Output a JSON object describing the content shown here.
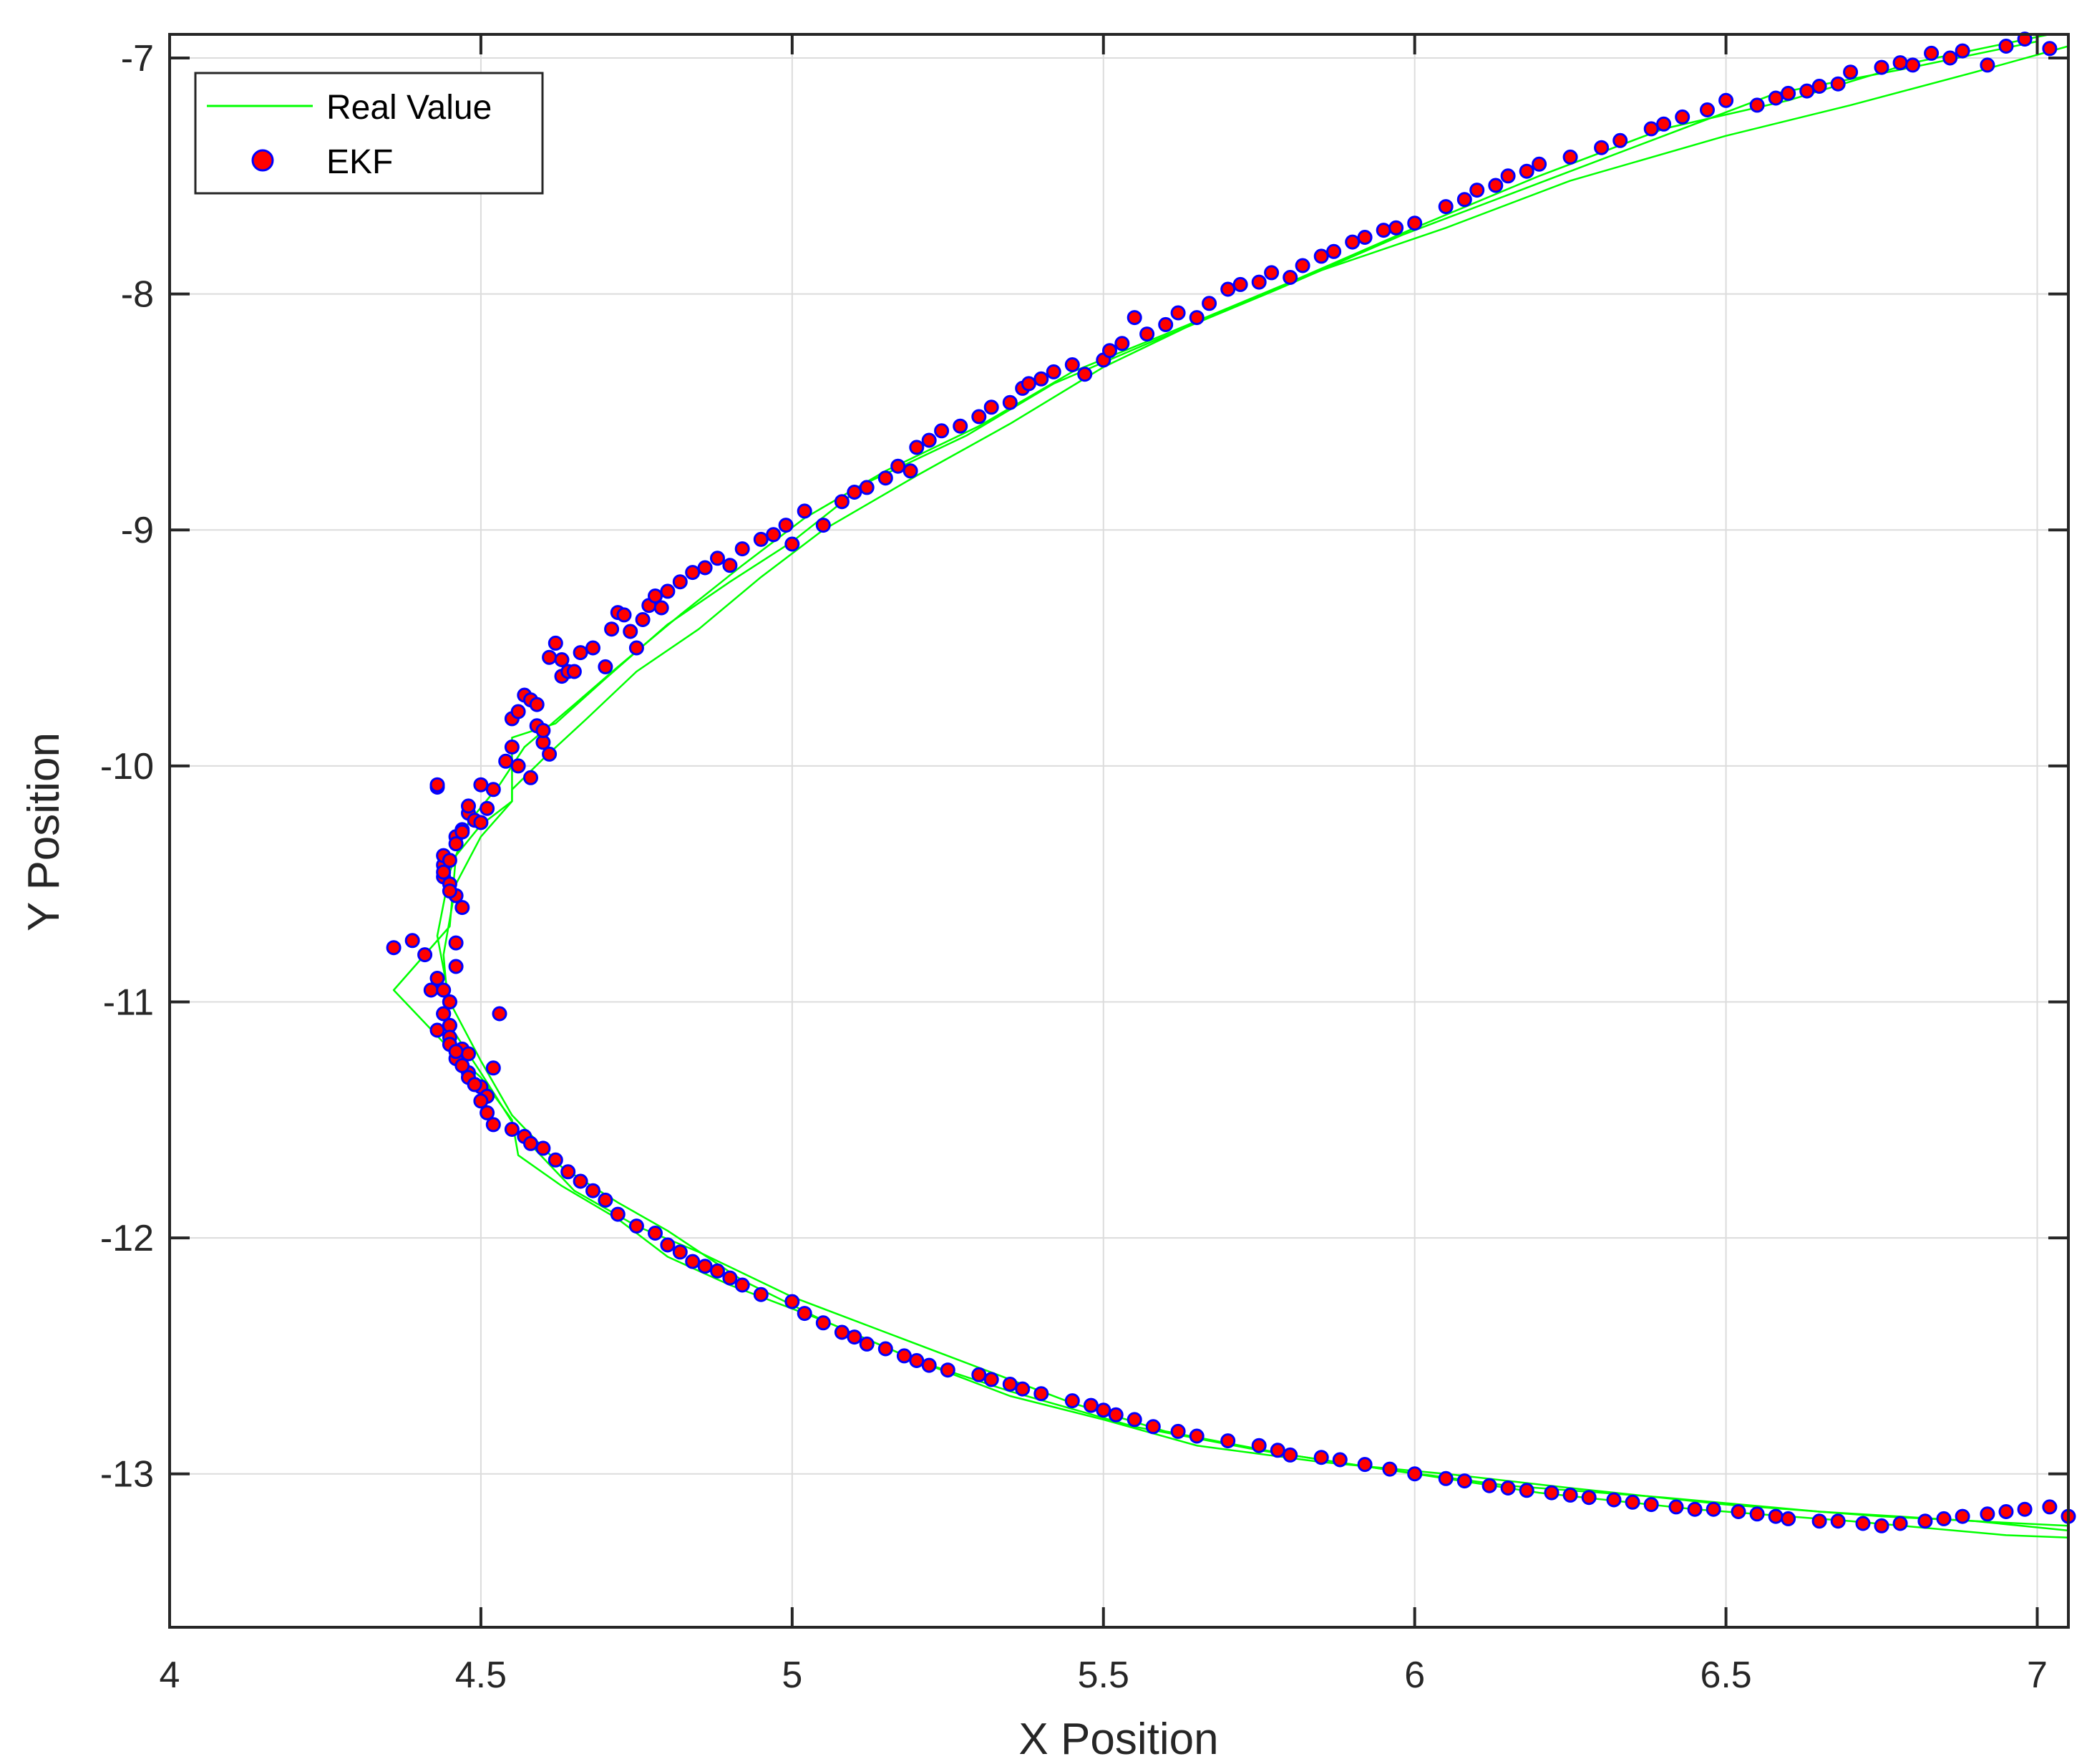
{
  "chart_data": {
    "type": "scatter",
    "title": "",
    "xlabel": "X Position",
    "ylabel": "Y Position",
    "xlim": [
      4,
      7.05
    ],
    "ylim": [
      -13.65,
      -6.9
    ],
    "xticks": [
      4,
      4.5,
      5,
      5.5,
      6,
      6.5,
      7
    ],
    "yticks": [
      -7,
      -8,
      -9,
      -10,
      -11,
      -12,
      -13
    ],
    "xtick_labels": [
      "4",
      "4.5",
      "5",
      "5.5",
      "6",
      "6.5",
      "7"
    ],
    "ytick_labels": [
      "-7",
      "-8",
      "-9",
      "-10",
      "-11",
      "-12",
      "-13"
    ],
    "grid": true,
    "legend_position": "top-left",
    "colors": {
      "real_line": "#00ff00",
      "ekf_fill": "#ff0000",
      "ekf_edge": "#0000ff",
      "grid": "#dcdcdc",
      "axes": "#262626"
    },
    "series": [
      {
        "name": "Real Value",
        "kind": "line",
        "x": [
          7.05,
          6.9,
          6.7,
          6.5,
          6.25,
          6.05,
          5.85,
          5.65,
          5.5,
          5.35,
          5.2,
          5.05,
          4.95,
          4.85,
          4.75,
          4.67,
          4.6,
          4.55,
          4.55,
          4.5,
          4.46,
          4.45,
          4.36,
          4.45,
          4.5,
          4.55,
          4.56,
          4.63,
          4.72,
          4.8,
          4.9,
          5.05,
          5.2,
          5.35,
          5.5,
          5.65,
          5.85,
          6.05,
          6.25,
          6.5,
          6.75,
          7.05
        ],
        "y": [
          -6.95,
          -7.06,
          -7.2,
          -7.33,
          -7.52,
          -7.72,
          -7.9,
          -8.12,
          -8.31,
          -8.55,
          -8.77,
          -9.0,
          -9.2,
          -9.42,
          -9.6,
          -9.8,
          -9.97,
          -10.1,
          -10.15,
          -10.25,
          -10.38,
          -10.68,
          -10.95,
          -11.2,
          -11.32,
          -11.5,
          -11.65,
          -11.78,
          -11.92,
          -12.08,
          -12.2,
          -12.35,
          -12.52,
          -12.67,
          -12.77,
          -12.88,
          -12.95,
          -13.0,
          -13.06,
          -13.13,
          -13.18,
          -13.22
        ]
      },
      {
        "name": "Real Value",
        "kind": "line",
        "x": [
          7.02,
          6.8,
          6.6,
          6.4,
          6.2,
          6.0,
          5.8,
          5.6,
          5.45,
          5.3,
          5.15,
          5.02,
          4.92,
          4.82,
          4.72,
          4.65,
          4.57,
          4.53,
          4.48,
          4.45,
          4.43,
          4.45,
          4.5,
          4.55,
          4.63,
          4.72,
          4.8,
          4.92,
          5.05,
          5.2,
          5.35,
          5.55,
          5.75,
          5.95,
          6.15,
          6.4,
          6.65,
          6.9,
          7.05
        ],
        "y": [
          -6.9,
          -7.02,
          -7.18,
          -7.3,
          -7.5,
          -7.72,
          -7.95,
          -8.17,
          -8.33,
          -8.56,
          -8.75,
          -8.95,
          -9.15,
          -9.36,
          -9.58,
          -9.74,
          -9.92,
          -10.08,
          -10.24,
          -10.45,
          -10.72,
          -11.0,
          -11.25,
          -11.48,
          -11.7,
          -11.85,
          -11.97,
          -12.18,
          -12.35,
          -12.52,
          -12.65,
          -12.8,
          -12.9,
          -12.98,
          -13.05,
          -13.1,
          -13.16,
          -13.2,
          -13.24
        ]
      },
      {
        "name": "Real Value",
        "kind": "line",
        "x": [
          7.0,
          6.78,
          6.58,
          6.38,
          6.18,
          5.98,
          5.78,
          5.58,
          5.42,
          5.28,
          5.12,
          5.0,
          4.9,
          4.8,
          4.7,
          4.62,
          4.55,
          4.55,
          4.5,
          4.46,
          4.44,
          4.45,
          4.5,
          4.56,
          4.65,
          4.75,
          4.85,
          5.0,
          5.15,
          5.3,
          5.45,
          5.6,
          5.8,
          6.0,
          6.2,
          6.45,
          6.7,
          6.95,
          7.05
        ],
        "y": [
          -6.93,
          -7.05,
          -7.15,
          -7.35,
          -7.55,
          -7.75,
          -7.98,
          -8.2,
          -8.38,
          -8.6,
          -8.8,
          -9.05,
          -9.22,
          -9.4,
          -9.63,
          -9.82,
          -9.88,
          -10.15,
          -10.3,
          -10.5,
          -10.8,
          -11.1,
          -11.3,
          -11.55,
          -11.8,
          -11.95,
          -12.06,
          -12.25,
          -12.4,
          -12.55,
          -12.7,
          -12.82,
          -12.92,
          -13.0,
          -13.08,
          -13.15,
          -13.2,
          -13.26,
          -13.27
        ]
      },
      {
        "name": "EKF",
        "kind": "scatter",
        "x": [
          4.36,
          4.39,
          4.41,
          4.42,
          4.43,
          4.44,
          4.44,
          4.45,
          4.46,
          4.47,
          4.43,
          4.44,
          4.45,
          4.45,
          4.46,
          4.46,
          4.44,
          4.45,
          4.44,
          4.45,
          4.46,
          4.47,
          4.44,
          4.45,
          4.45,
          4.45,
          4.44,
          4.43,
          4.47,
          4.48,
          4.46,
          4.48,
          4.49,
          4.5,
          4.51,
          4.52,
          4.53,
          4.43,
          4.48,
          4.49,
          4.47,
          4.46,
          4.48,
          4.5,
          4.51,
          4.52,
          4.5,
          4.54,
          4.55,
          4.55,
          4.56,
          4.57,
          4.58,
          4.59,
          4.6,
          4.61,
          4.56,
          4.58,
          4.59,
          4.6,
          4.61,
          4.62,
          4.63,
          4.63,
          4.64,
          4.65,
          4.66,
          4.68,
          4.7,
          4.71,
          4.72,
          4.73,
          4.74,
          4.75,
          4.76,
          4.77,
          4.78,
          4.79,
          4.8,
          4.82,
          4.84,
          4.86,
          4.88,
          4.9,
          4.92,
          4.95,
          4.97,
          4.99,
          5.0,
          5.02,
          5.05,
          5.08,
          5.1,
          5.12,
          5.15,
          5.17,
          5.19,
          5.2,
          5.22,
          5.24,
          5.27,
          5.3,
          5.32,
          5.35,
          5.37,
          5.38,
          5.4,
          5.42,
          5.45,
          5.47,
          5.5,
          5.51,
          5.53,
          5.55,
          5.57,
          5.6,
          5.62,
          5.65,
          5.67,
          5.7,
          5.72,
          5.75,
          5.77,
          5.8,
          5.82,
          5.85,
          5.87,
          5.9,
          5.92,
          5.95,
          5.97,
          6.0,
          6.05,
          6.08,
          6.1,
          6.13,
          6.15,
          6.18,
          6.2,
          6.25,
          6.3,
          6.33,
          6.38,
          6.4,
          6.43,
          6.47,
          6.5,
          6.55,
          6.58,
          6.6,
          6.63,
          6.65,
          6.68,
          6.7,
          6.75,
          6.78,
          6.8,
          6.83,
          6.86,
          6.88,
          6.92,
          6.95,
          6.98,
          7.02,
          4.45,
          4.46,
          4.47,
          4.48,
          4.49,
          4.5,
          4.51,
          4.52,
          4.55,
          4.57,
          4.58,
          4.6,
          4.62,
          4.64,
          4.66,
          4.68,
          4.7,
          4.72,
          4.75,
          4.78,
          4.8,
          4.82,
          4.84,
          4.86,
          4.88,
          4.9,
          4.92,
          4.95,
          5.0,
          5.02,
          5.05,
          5.08,
          5.1,
          5.12,
          5.15,
          5.18,
          5.2,
          5.22,
          5.25,
          5.3,
          5.32,
          5.35,
          5.37,
          5.4,
          5.45,
          5.48,
          5.5,
          5.52,
          5.55,
          5.58,
          5.62,
          5.65,
          5.7,
          5.75,
          5.78,
          5.8,
          5.85,
          5.88,
          5.92,
          5.96,
          6.0,
          6.05,
          6.08,
          6.12,
          6.15,
          6.18,
          6.22,
          6.25,
          6.28,
          6.32,
          6.35,
          6.38,
          6.42,
          6.45,
          6.48,
          6.52,
          6.55,
          6.58,
          6.6,
          6.65,
          6.68,
          6.72,
          6.75,
          6.78,
          6.82,
          6.85,
          6.88,
          6.92,
          6.95,
          6.98,
          7.02,
          7.05
        ],
        "y": [
          -10.77,
          -10.74,
          -10.8,
          -10.95,
          -10.09,
          -10.42,
          -10.47,
          -10.5,
          -10.55,
          -10.6,
          -10.9,
          -11.05,
          -11.1,
          -11.0,
          -10.85,
          -10.75,
          -10.38,
          -10.4,
          -10.45,
          -10.53,
          -10.3,
          -10.27,
          -11.05,
          -11.1,
          -11.15,
          -11.0,
          -10.95,
          -11.12,
          -11.2,
          -11.22,
          -11.24,
          -11.3,
          -11.35,
          -11.36,
          -11.4,
          -11.28,
          -11.05,
          -10.08,
          -10.2,
          -10.23,
          -10.28,
          -10.33,
          -10.17,
          -10.24,
          -10.18,
          -10.1,
          -10.08,
          -9.98,
          -9.92,
          -9.8,
          -9.77,
          -9.7,
          -9.72,
          -9.74,
          -9.9,
          -9.95,
          -10.0,
          -10.05,
          -9.83,
          -9.85,
          -9.54,
          -9.48,
          -9.55,
          -9.62,
          -9.6,
          -9.6,
          -9.52,
          -9.5,
          -9.58,
          -9.42,
          -9.35,
          -9.36,
          -9.43,
          -9.5,
          -9.38,
          -9.32,
          -9.28,
          -9.33,
          -9.26,
          -9.22,
          -9.18,
          -9.16,
          -9.12,
          -9.15,
          -9.08,
          -9.04,
          -9.02,
          -8.98,
          -9.06,
          -8.92,
          -8.98,
          -8.88,
          -8.84,
          -8.82,
          -8.78,
          -8.73,
          -8.75,
          -8.65,
          -8.62,
          -8.58,
          -8.56,
          -8.52,
          -8.48,
          -8.46,
          -8.4,
          -8.38,
          -8.36,
          -8.33,
          -8.3,
          -8.34,
          -8.28,
          -8.24,
          -8.21,
          -8.1,
          -8.17,
          -8.13,
          -8.08,
          -8.1,
          -8.04,
          -7.98,
          -7.96,
          -7.95,
          -7.91,
          -7.93,
          -7.88,
          -7.84,
          -7.82,
          -7.78,
          -7.76,
          -7.73,
          -7.72,
          -7.7,
          -7.63,
          -7.6,
          -7.56,
          -7.54,
          -7.5,
          -7.48,
          -7.45,
          -7.42,
          -7.38,
          -7.35,
          -7.3,
          -7.28,
          -7.25,
          -7.22,
          -7.18,
          -7.2,
          -7.17,
          -7.15,
          -7.14,
          -7.12,
          -7.11,
          -7.06,
          -7.04,
          -7.02,
          -7.03,
          -6.98,
          -7.0,
          -6.97,
          -7.03,
          -6.95,
          -6.92,
          -6.96,
          -11.18,
          -11.21,
          -11.27,
          -11.32,
          -11.35,
          -11.42,
          -11.47,
          -11.52,
          -11.54,
          -11.57,
          -11.6,
          -11.62,
          -11.67,
          -11.72,
          -11.76,
          -11.8,
          -11.84,
          -11.9,
          -11.95,
          -11.98,
          -12.03,
          -12.06,
          -12.1,
          -12.12,
          -12.14,
          -12.17,
          -12.2,
          -12.24,
          -12.27,
          -12.32,
          -12.36,
          -12.4,
          -12.42,
          -12.45,
          -12.47,
          -12.5,
          -12.52,
          -12.54,
          -12.56,
          -12.58,
          -12.6,
          -12.62,
          -12.64,
          -12.66,
          -12.69,
          -12.71,
          -12.73,
          -12.75,
          -12.77,
          -12.8,
          -12.82,
          -12.84,
          -12.86,
          -12.88,
          -12.9,
          -12.92,
          -12.93,
          -12.94,
          -12.96,
          -12.98,
          -13.0,
          -13.02,
          -13.03,
          -13.05,
          -13.06,
          -13.07,
          -13.08,
          -13.09,
          -13.1,
          -13.11,
          -13.12,
          -13.13,
          -13.14,
          -13.15,
          -13.15,
          -13.16,
          -13.17,
          -13.18,
          -13.19,
          -13.2,
          -13.2,
          -13.21,
          -13.22,
          -13.21,
          -13.2,
          -13.19,
          -13.18,
          -13.17,
          -13.16,
          -13.15,
          -13.14,
          -13.18
        ]
      }
    ]
  }
}
